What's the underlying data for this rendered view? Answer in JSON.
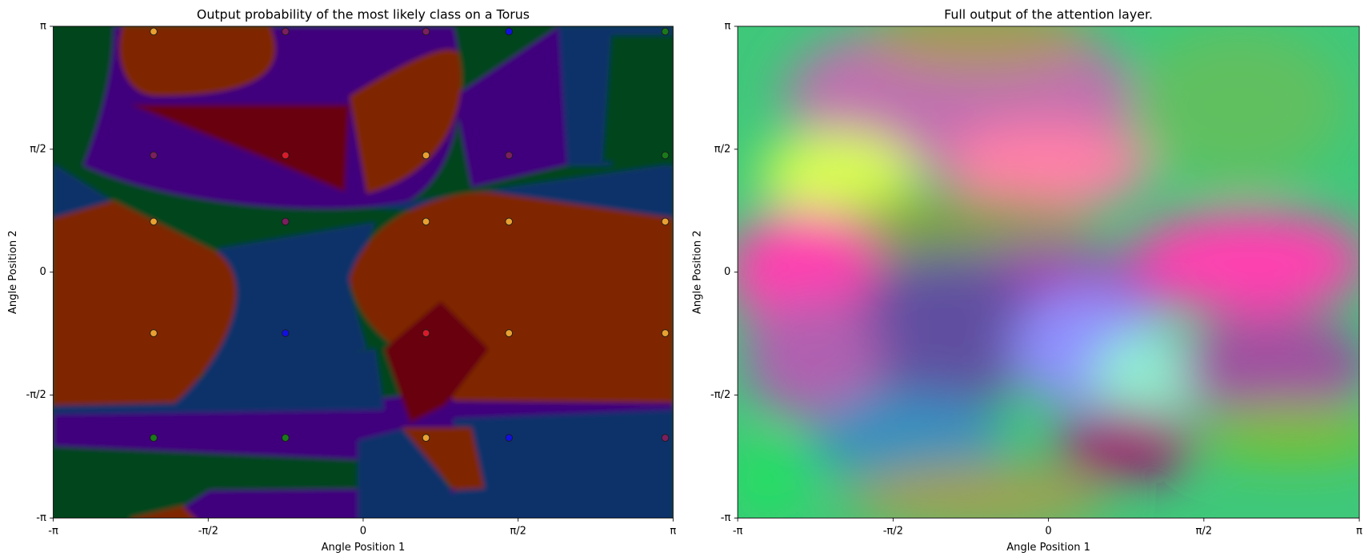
{
  "chart_data": [
    {
      "type": "scatter",
      "title": "Output probability of the most likely class on a Torus",
      "x_label": "Angle Position 1",
      "y_label": "Angle Position 2",
      "xlim": [
        -3.1416,
        3.1416
      ],
      "ylim": [
        -3.1416,
        3.1416
      ],
      "xticks": [
        {
          "value": -3.1416,
          "label": "-π"
        },
        {
          "value": -1.5708,
          "label": "-π/2"
        },
        0,
        {
          "value": 1.5708,
          "label": "π/2"
        },
        {
          "value": 3.1416,
          "label": "π"
        }
      ],
      "yticks": [
        {
          "value": -3.1416,
          "label": "-π"
        },
        {
          "value": -1.5708,
          "label": "-π/2"
        },
        0,
        {
          "value": 1.5708,
          "label": "π/2"
        },
        {
          "value": 3.1416,
          "label": "π"
        }
      ],
      "points": {
        "x": [
          -2.124,
          -0.788,
          0.637,
          1.478,
          3.062,
          -2.124,
          -0.788,
          0.637,
          1.478,
          3.062,
          -2.124,
          -0.788,
          0.637,
          1.478,
          3.062,
          -2.124,
          -0.788,
          0.637,
          1.478,
          3.062,
          -2.124,
          -0.788,
          0.637,
          1.478,
          3.062
        ],
        "y": [
          3.075,
          3.075,
          3.075,
          3.075,
          3.075,
          1.493,
          1.493,
          1.493,
          1.493,
          1.493,
          0.646,
          0.646,
          0.646,
          0.646,
          0.646,
          -0.78,
          -0.78,
          -0.78,
          -0.78,
          -0.78,
          -2.117,
          -2.117,
          -2.117,
          -2.117,
          -2.117
        ],
        "colors": [
          "#e8a030",
          "#7b1f5e",
          "#7b1f5e",
          "#1010e0",
          "#1a7a1a",
          "#7b1f5e",
          "#d81b2a",
          "#e8a030",
          "#7b1f5e",
          "#1a7a1a",
          "#e8a030",
          "#7b1f5e",
          "#e8a030",
          "#e8a030",
          "#e8a030",
          "#e8a030",
          "#1010e0",
          "#d81b2a",
          "#e8a030",
          "#e8a030",
          "#1a7a1a",
          "#1a7a1a",
          "#e8a030",
          "#1010e0",
          "#7b1f5e"
        ]
      }
    },
    {
      "type": "heatmap",
      "title": "Full output of the attention layer.",
      "x_label": "Angle Position 1",
      "y_label": "Angle Position 2",
      "xlim": [
        -3.1416,
        3.1416
      ],
      "ylim": [
        -3.1416,
        3.1416
      ],
      "xticks": [
        {
          "value": -3.1416,
          "label": "-π"
        },
        {
          "value": -1.5708,
          "label": "-π/2"
        },
        0,
        {
          "value": 1.5708,
          "label": "π/2"
        },
        {
          "value": 3.1416,
          "label": "π"
        }
      ],
      "yticks": [
        {
          "value": -3.1416,
          "label": "-π"
        },
        {
          "value": -1.5708,
          "label": "-π/2"
        },
        0,
        {
          "value": 1.5708,
          "label": "π/2"
        },
        {
          "value": 3.1416,
          "label": "π"
        }
      ]
    }
  ]
}
